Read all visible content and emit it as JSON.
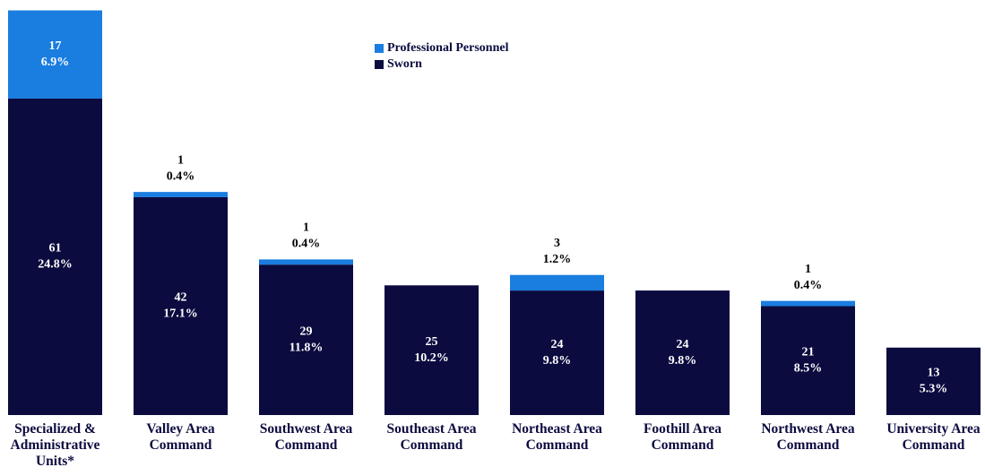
{
  "chart_data": {
    "type": "stacked_bar",
    "categories": [
      "Specialized & Administrative Units*",
      "Valley Area Command",
      "Southwest Area Command",
      "Southeast Area Command",
      "Northeast Area Command",
      "Foothill Area Command",
      "Northwest Area Command",
      "University Area Command"
    ],
    "series": [
      {
        "name": "Sworn",
        "color": "#0b0b40",
        "values": [
          61,
          42,
          29,
          25,
          24,
          24,
          21,
          13
        ],
        "share_labels": [
          "24.8%",
          "17.1%",
          "11.8%",
          "10.2%",
          "9.8%",
          "9.8%",
          "8.5%",
          "5.3%"
        ]
      },
      {
        "name": "Professional Personnel",
        "color": "#1a7de0",
        "values": [
          17,
          1,
          1,
          null,
          3,
          null,
          1,
          null
        ],
        "share_labels": [
          "6.9%",
          "0.4%",
          "0.4%",
          null,
          "1.2%",
          null,
          "0.4%",
          null
        ]
      }
    ],
    "ylim": [
      0,
      80
    ],
    "legend": "top-center"
  }
}
